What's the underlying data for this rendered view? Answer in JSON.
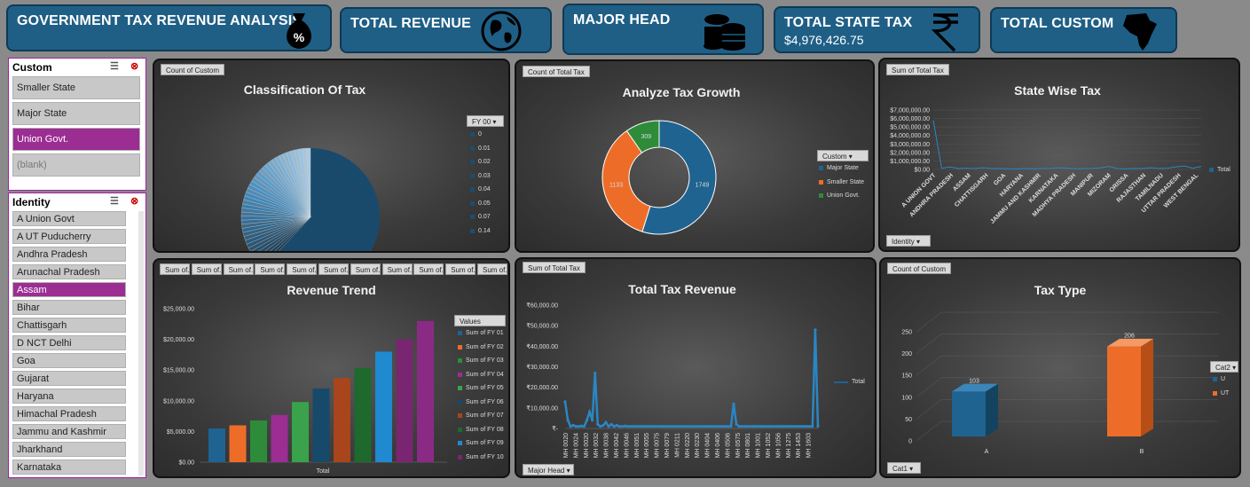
{
  "cards": {
    "main_title": "GOVERNMENT TAX REVENUE ANALYSIS",
    "total_revenue": "TOTAL REVENUE",
    "major_head": "MAJOR HEAD",
    "total_state_tax": "TOTAL STATE TAX",
    "total_state_tax_value": "$4,976,426.75",
    "total_custom": "TOTAL CUSTOM"
  },
  "slicer_custom": {
    "title": "Custom",
    "items": [
      "Smaller State",
      "Major State",
      "Union Govt.",
      "(blank)"
    ],
    "selected": "Union Govt."
  },
  "slicer_identity": {
    "title": "Identity",
    "items": [
      "A Union Govt",
      "A UT Puducherry",
      "Andhra Pradesh",
      "Arunachal Pradesh",
      "Assam",
      "Bihar",
      "Chattisgarh",
      "D NCT Delhi",
      "Goa",
      "Gujarat",
      "Haryana",
      "Himachal Pradesh",
      "Jammu and Kashmir",
      "Jharkhand",
      "Karnataka"
    ],
    "selected": "Assam"
  },
  "panel_classification": {
    "field_button": "Count of Custom",
    "title": "Classification Of Tax",
    "legend_button": "FY 00",
    "legend": [
      "0",
      "0.01",
      "0.02",
      "0.03",
      "0.04",
      "0.05",
      "0.07",
      "0.14"
    ]
  },
  "panel_growth": {
    "field_button": "Count of Total Tax",
    "title": "Analyze Tax Growth",
    "legend_button": "Custom",
    "legend": [
      "Major State",
      "Smaller State",
      "Union Govt."
    ]
  },
  "panel_state": {
    "field_button": "Sum of Total Tax",
    "title": "State Wise Tax",
    "axis_button": "Identity",
    "legend": "Total",
    "y_ticks": [
      "$7,000,000.00",
      "$6,000,000.00",
      "$5,000,000.00",
      "$4,000,000.00",
      "$3,000,000.00",
      "$2,000,000.00",
      "$1,000,000.00",
      "$0.00"
    ],
    "x_labels": [
      "A UNION GOVT",
      "ANDHRA PRADESH",
      "ASSAM",
      "CHATTISGARH",
      "GOA",
      "HARYANA",
      "JAMMU AND KASHMIR",
      "KARNATAKA",
      "MADHYA PRADESH",
      "MANIPUR",
      "MIZORAM",
      "ORISSA",
      "RAJASTHAN",
      "TAMILNADU",
      "UTTAR PRADESH",
      "WEST BENGAL"
    ]
  },
  "panel_trend": {
    "field_buttons": [
      "Sum of...",
      "Sum of...",
      "Sum of...",
      "Sum of...",
      "Sum of...",
      "Sum of...",
      "Sum of...",
      "Sum of...",
      "Sum of...",
      "Sum of...",
      "Sum of..."
    ],
    "title": "Revenue Trend",
    "legend_title": "Values",
    "x_label": "Total",
    "y_ticks": [
      "$25,000.00",
      "$20,000.00",
      "$15,000.00",
      "$10,000.00",
      "$5,000.00",
      "$0.00"
    ]
  },
  "panel_total": {
    "field_button": "Sum of Total Tax",
    "title": "Total Tax Revenue",
    "axis_button": "Major Head",
    "legend": "Total",
    "y_ticks": [
      "₹60,000.00",
      "₹50,000.00",
      "₹40,000.00",
      "₹30,000.00",
      "₹20,000.00",
      "₹10,000.00",
      "₹-"
    ],
    "x_labels": [
      "MH 0020",
      "MH 0024",
      "MH 0020",
      "MH 0032",
      "MH 0038",
      "MH 0042",
      "MH 0046",
      "MH 0051",
      "MH 0055",
      "MH 0075",
      "MH 0079",
      "MH 0211",
      "MH 0220",
      "MH 0230",
      "MH 0404",
      "MH 0406",
      "MH 0506",
      "MH 0575",
      "MH 0801",
      "MH 1001",
      "MH 1052",
      "MH 1056",
      "MH 1275",
      "MH 1453",
      "MH 1603"
    ]
  },
  "panel_taxtype": {
    "field_button": "Count of Custom",
    "title": "Tax Type",
    "axis_button": "Cat1",
    "legend_button": "Cat2",
    "legend": [
      "U",
      "UT"
    ],
    "y_ticks": [
      "250",
      "200",
      "150",
      "100",
      "50",
      "0"
    ]
  },
  "colors": {
    "blue": "#1f6391",
    "orange": "#ed6d28",
    "green": "#2e8b3a",
    "purple": "#9b2d93",
    "card": "#1f5f86"
  },
  "chart_data": [
    {
      "type": "pie",
      "title": "Classification Of Tax",
      "categories": [
        "0",
        "0.01",
        "0.02",
        "0.03",
        "0.04",
        "0.05",
        "0.07",
        "0.14"
      ],
      "note_values": "dominant slice with many thin slices"
    },
    {
      "type": "pie",
      "title": "Analyze Tax Growth",
      "categories": [
        "Major State",
        "Smaller State",
        "Union Govt."
      ],
      "values": [
        1749,
        1133,
        309
      ]
    },
    {
      "type": "line",
      "title": "State Wise Tax",
      "series": [
        {
          "name": "Total",
          "values": [
            5800000,
            150000,
            300000,
            100000,
            150000,
            100000,
            200000,
            100000,
            100000,
            80000,
            60000,
            120000,
            80000,
            100000,
            120000,
            200000,
            150000,
            80000,
            100000,
            120000,
            200000,
            350000,
            100000,
            80000,
            100000,
            100000,
            200000,
            120000,
            150000,
            300000,
            400000,
            150000,
            350000
          ]
        }
      ],
      "ylim": [
        0,
        7000000
      ]
    },
    {
      "type": "bar",
      "title": "Revenue Trend",
      "categories": [
        "Total"
      ],
      "series": [
        {
          "name": "Sum of FY 01",
          "values": [
            5500
          ]
        },
        {
          "name": "Sum of FY 02",
          "values": [
            6000
          ]
        },
        {
          "name": "Sum of FY 03",
          "values": [
            6800
          ]
        },
        {
          "name": "Sum of FY 04",
          "values": [
            7700
          ]
        },
        {
          "name": "Sum of FY 05",
          "values": [
            9800
          ]
        },
        {
          "name": "Sum of FY 06",
          "values": [
            12000
          ]
        },
        {
          "name": "Sum of FY 07",
          "values": [
            13700
          ]
        },
        {
          "name": "Sum of FY 08",
          "values": [
            15300
          ]
        },
        {
          "name": "Sum of FY 09",
          "values": [
            18000
          ]
        },
        {
          "name": "Sum of FY 10",
          "values": [
            20000
          ]
        },
        {
          "name": "",
          "values": [
            23000
          ]
        }
      ],
      "ylim": [
        0,
        25000
      ]
    },
    {
      "type": "line",
      "title": "Total Tax Revenue",
      "series": [
        {
          "name": "Total",
          "values": [
            13000,
            4000,
            1000,
            1500,
            1000,
            1000,
            1200,
            1000,
            4000,
            8000,
            4000,
            27000,
            2000,
            1000,
            1500,
            3000,
            1000,
            2000,
            1000,
            1500,
            1000,
            1000,
            1200,
            1000,
            1000,
            1000,
            1000,
            1000,
            1000,
            1000,
            1000,
            1000,
            1000,
            1000,
            1000,
            1000,
            1000,
            1000,
            1000,
            1000,
            1000,
            1000,
            1000,
            1000,
            1000,
            1000,
            1000,
            1000,
            1000,
            1000,
            1000,
            1000,
            1000,
            1000,
            1000,
            1000,
            1000,
            1000,
            1000,
            1000,
            1000,
            1000,
            12000,
            2000,
            1000,
            1000,
            1000,
            1000,
            1000,
            1000,
            1000,
            1000,
            1000,
            1000,
            1000,
            1000,
            1000,
            1000,
            1000,
            1000,
            1000,
            1000,
            1000,
            1000,
            1000,
            1000,
            1000,
            1000,
            1000,
            1000,
            1000,
            1000,
            48000,
            1000
          ]
        }
      ],
      "ylim": [
        0,
        60000
      ]
    },
    {
      "type": "bar",
      "title": "Tax Type",
      "categories": [
        "A",
        "B"
      ],
      "series": [
        {
          "name": "U",
          "values": [
            103,
            0
          ]
        },
        {
          "name": "UT",
          "values": [
            0,
            206
          ]
        }
      ],
      "ylim": [
        0,
        250
      ]
    }
  ]
}
